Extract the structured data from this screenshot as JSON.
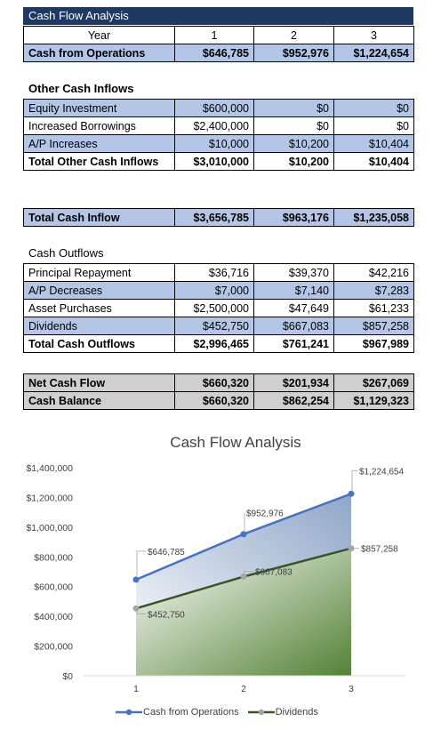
{
  "title": "Cash Flow Analysis",
  "header": {
    "label": "Year",
    "years": [
      "1",
      "2",
      "3"
    ]
  },
  "operations": {
    "label": "Cash from Operations",
    "values": [
      "$646,785",
      "$952,976",
      "$1,224,654"
    ]
  },
  "other_inflows": {
    "title": "Other Cash Inflows",
    "rows": [
      {
        "label": "Equity Investment",
        "values": [
          "$600,000",
          "$0",
          "$0"
        ]
      },
      {
        "label": "Increased Borrowings",
        "values": [
          "$2,400,000",
          "$0",
          "$0"
        ]
      },
      {
        "label": "A/P Increases",
        "values": [
          "$10,000",
          "$10,200",
          "$10,404"
        ]
      }
    ],
    "total": {
      "label": "Total Other Cash Inflows",
      "values": [
        "$3,010,000",
        "$10,200",
        "$10,404"
      ]
    }
  },
  "total_inflow": {
    "label": "Total Cash Inflow",
    "values": [
      "$3,656,785",
      "$963,176",
      "$1,235,058"
    ]
  },
  "outflows": {
    "title": "Cash Outflows",
    "rows": [
      {
        "label": "Principal Repayment",
        "values": [
          "$36,716",
          "$39,370",
          "$42,216"
        ]
      },
      {
        "label": "A/P Decreases",
        "values": [
          "$7,000",
          "$7,140",
          "$7,283"
        ]
      },
      {
        "label": "Asset Purchases",
        "values": [
          "$2,500,000",
          "$47,649",
          "$61,233"
        ]
      },
      {
        "label": "Dividends",
        "values": [
          "$452,750",
          "$667,083",
          "$857,258"
        ]
      }
    ],
    "total": {
      "label": "Total Cash Outflows",
      "values": [
        "$2,996,465",
        "$761,241",
        "$967,989"
      ]
    }
  },
  "net_cash_flow": {
    "label": "Net Cash Flow",
    "values": [
      "$660,320",
      "$201,934",
      "$267,069"
    ]
  },
  "cash_balance": {
    "label": "Cash Balance",
    "values": [
      "$660,320",
      "$862,254",
      "$1,129,323"
    ]
  },
  "chart_data": {
    "type": "area",
    "title": "Cash Flow Analysis",
    "x": [
      1,
      2,
      3
    ],
    "x_tick_labels": [
      "1",
      "2",
      "3"
    ],
    "ylim": [
      0,
      1400000
    ],
    "y_ticks": [
      0,
      200000,
      400000,
      600000,
      800000,
      1000000,
      1200000,
      1400000
    ],
    "y_tick_labels": [
      "$0",
      "$200,000",
      "$400,000",
      "$600,000",
      "$800,000",
      "$1,000,000",
      "$1,200,000",
      "$1,400,000"
    ],
    "grid": false,
    "legend_position": "bottom",
    "series": [
      {
        "name": "Cash from Operations",
        "values": [
          646785,
          952976,
          1224654
        ],
        "labels": [
          "$646,785",
          "$952,976",
          "$1,224,654"
        ],
        "line_color": "#4472c4",
        "fill_color": "#8fa6c7"
      },
      {
        "name": "Dividends",
        "values": [
          452750,
          667083,
          857258
        ],
        "labels": [
          "$452,750",
          "$667,083",
          "$857,258"
        ],
        "line_color": "#375623",
        "fill_color": "#548235"
      }
    ]
  }
}
